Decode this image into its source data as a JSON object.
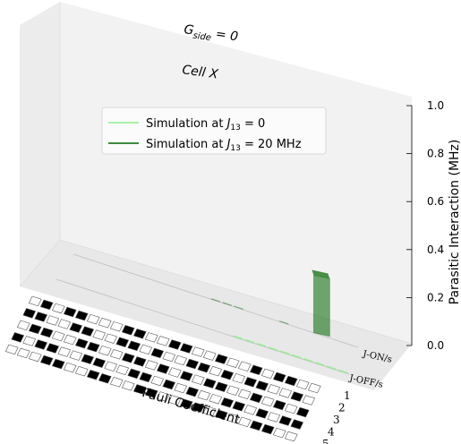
{
  "chart_data": {
    "type": "bar",
    "projection": "3d",
    "annotations": [
      "G_side = 0",
      "Cell X"
    ],
    "zlabel": "Parasitic Interaction (MHz)",
    "xlabel": "Pauli Coefficient",
    "zlim": [
      0,
      1.0
    ],
    "zticks": [
      "0.0",
      "0.2",
      "0.4",
      "0.6",
      "0.8",
      "1.0"
    ],
    "depth_labels": [
      "J-ON/s",
      "J-OFF/s"
    ],
    "qubit_labels": [
      "1",
      "2",
      "3",
      "4",
      "5"
    ],
    "legend_position": "upper-center",
    "series": [
      {
        "name": "Simulation at J13 = 0",
        "name_main": "Simulation at ",
        "name_var": "J",
        "name_sub": "13",
        "name_rest": " = 0",
        "color": "#90ee90",
        "row": "J-OFF/s",
        "values": [
          0,
          0,
          0,
          0,
          0,
          0,
          0,
          0,
          0,
          0,
          0,
          0,
          0,
          0,
          0,
          0.006,
          0.006,
          0.006,
          0.006,
          0.006,
          0.006,
          0.006,
          0.006,
          0.006,
          0.006
        ]
      },
      {
        "name": "Simulation at J13 = 20 MHz",
        "name_main": "Simulation at ",
        "name_var": "J",
        "name_sub": "13",
        "name_rest": " = 20 MHz",
        "color": "#006400",
        "row": "J-ON/s",
        "values": [
          0,
          0,
          0,
          0,
          0,
          0,
          0,
          0,
          0,
          0,
          0,
          0,
          0.004,
          0.004,
          0.004,
          0,
          0,
          0,
          0.004,
          0,
          0,
          0.24,
          0,
          0,
          0
        ]
      }
    ],
    "pauli_pattern": [
      [
        0,
        1,
        0,
        1,
        1,
        0,
        0,
        0,
        1,
        1,
        0,
        0,
        1,
        1,
        0,
        0,
        1,
        0,
        0,
        1,
        0,
        1,
        1,
        0,
        0
      ],
      [
        1,
        1,
        0,
        0,
        1,
        1,
        0,
        0,
        1,
        1,
        0,
        1,
        0,
        0,
        1,
        1,
        0,
        1,
        0,
        1,
        1,
        0,
        0,
        1,
        0
      ],
      [
        0,
        1,
        1,
        0,
        0,
        1,
        1,
        0,
        0,
        1,
        1,
        0,
        1,
        0,
        1,
        0,
        1,
        1,
        0,
        0,
        1,
        0,
        1,
        0,
        1
      ],
      [
        1,
        0,
        1,
        1,
        0,
        0,
        1,
        1,
        0,
        0,
        1,
        1,
        0,
        1,
        0,
        1,
        0,
        0,
        1,
        1,
        0,
        1,
        0,
        1,
        1
      ],
      [
        0,
        0,
        0,
        1,
        1,
        0,
        0,
        1,
        1,
        0,
        0,
        1,
        1,
        0,
        0,
        1,
        1,
        0,
        1,
        0,
        0,
        1,
        1,
        0,
        0
      ]
    ]
  }
}
